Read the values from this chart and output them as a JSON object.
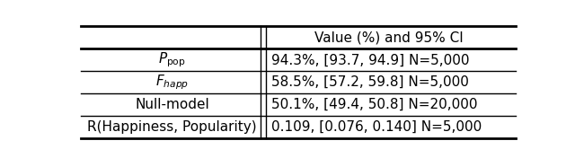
{
  "header": [
    "",
    "Value (%) and 95% CI"
  ],
  "rows": [
    [
      "P_pop",
      "94.3%, [93.7, 94.9] N=5,000"
    ],
    [
      "F_happ",
      "58.5%, [57.2, 59.8] N=5,000"
    ],
    [
      "Null-model",
      "50.1%, [49.4, 50.8] N=20,000"
    ],
    [
      "R(Happiness, Popularity)",
      "0.109, [0.076, 0.140] N=5,000"
    ]
  ],
  "col_split": 0.42,
  "figsize": [
    6.4,
    1.86
  ],
  "dpi": 100,
  "bg_color": "#ffffff",
  "text_color": "#000000",
  "line_color": "#000000",
  "font_size": 11
}
